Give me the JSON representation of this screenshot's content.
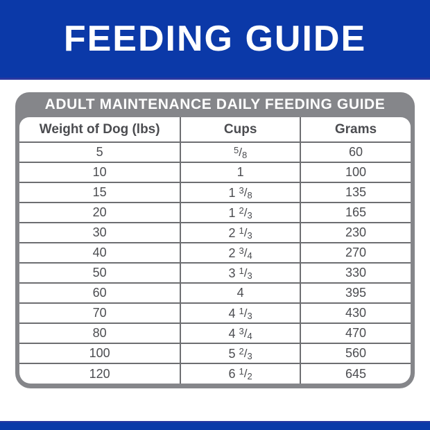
{
  "banner": {
    "title": "FEEDING GUIDE"
  },
  "chart_data": {
    "type": "table",
    "title": "ADULT MAINTENANCE DAILY FEEDING GUIDE",
    "columns": [
      "Weight of Dog (lbs)",
      "Cups",
      "Grams"
    ],
    "rows": [
      {
        "weight": "5",
        "cups": "5/8",
        "grams": "60"
      },
      {
        "weight": "10",
        "cups": "1",
        "grams": "100"
      },
      {
        "weight": "15",
        "cups": "1 3/8",
        "grams": "135"
      },
      {
        "weight": "20",
        "cups": "1 2/3",
        "grams": "165"
      },
      {
        "weight": "30",
        "cups": "2 1/3",
        "grams": "230"
      },
      {
        "weight": "40",
        "cups": "2 3/4",
        "grams": "270"
      },
      {
        "weight": "50",
        "cups": "3 1/3",
        "grams": "330"
      },
      {
        "weight": "60",
        "cups": "4",
        "grams": "395"
      },
      {
        "weight": "70",
        "cups": "4 1/3",
        "grams": "430"
      },
      {
        "weight": "80",
        "cups": "4 3/4",
        "grams": "470"
      },
      {
        "weight": "100",
        "cups": "5 2/3",
        "grams": "560"
      },
      {
        "weight": "120",
        "cups": "6 1/2",
        "grams": "645"
      }
    ]
  },
  "colors": {
    "brand_blue": "#0b39a8",
    "banner_edge_blue": "#2a38a0",
    "band_gray": "#85868a",
    "grid_gray": "#6d6e71",
    "text_gray": "#4b4c50"
  }
}
